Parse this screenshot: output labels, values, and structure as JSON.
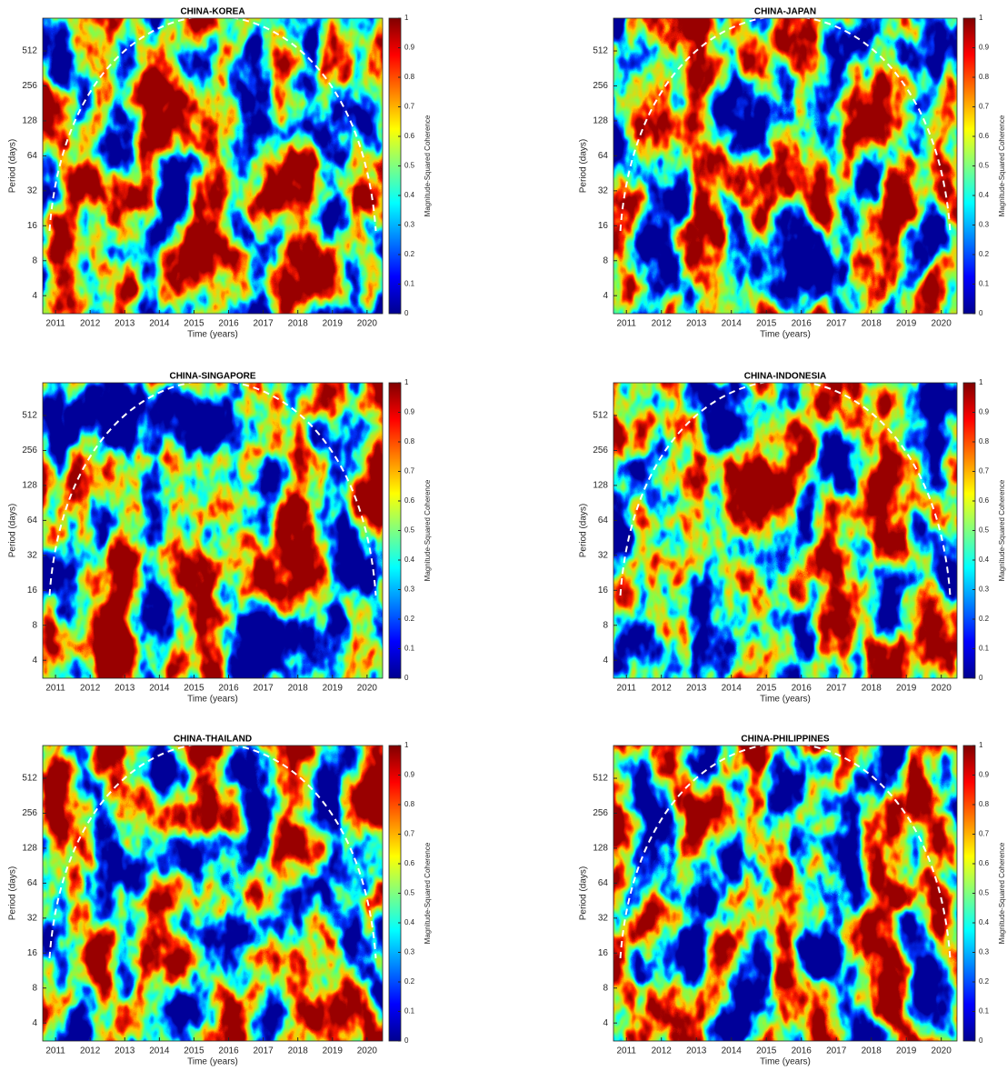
{
  "chart_data": [
    {
      "type": "heatmap",
      "title": "CHINA-KOREA",
      "xlabel": "Time (years)",
      "ylabel": "Period (days)",
      "colorbar_label": "Magnitude-Squared Coherence",
      "colormap": "jet",
      "log_scale_y": true,
      "xlim": [
        2010.63,
        2020.45
      ],
      "xticks": [
        2011,
        2012,
        2013,
        2014,
        2015,
        2016,
        2017,
        2018,
        2019,
        2020
      ],
      "ylim": [
        2.8,
        980
      ],
      "yticks": [
        4,
        8,
        16,
        32,
        64,
        128,
        256,
        512
      ],
      "clim": [
        0,
        1
      ],
      "cticks": [
        0,
        0.1,
        0.2,
        0.3,
        0.4,
        0.5,
        0.6,
        0.7,
        0.8,
        0.9,
        1
      ]
    },
    {
      "type": "heatmap",
      "title": "CHINA-JAPAN",
      "xlabel": "Time (years)",
      "ylabel": "Period (days)",
      "colorbar_label": "Magnitude-Squared Coherence",
      "colormap": "jet",
      "log_scale_y": true,
      "xlim": [
        2010.63,
        2020.45
      ],
      "xticks": [
        2011,
        2012,
        2013,
        2014,
        2015,
        2016,
        2017,
        2018,
        2019,
        2020
      ],
      "ylim": [
        2.8,
        980
      ],
      "yticks": [
        4,
        8,
        16,
        32,
        64,
        128,
        256,
        512
      ],
      "clim": [
        0,
        1
      ],
      "cticks": [
        0,
        0.1,
        0.2,
        0.3,
        0.4,
        0.5,
        0.6,
        0.7,
        0.8,
        0.9,
        1
      ]
    },
    {
      "type": "heatmap",
      "title": "CHINA-SINGAPORE",
      "xlabel": "Time (years)",
      "ylabel": "Period (days)",
      "colorbar_label": "Magnitude-Squared Coherence",
      "colormap": "jet",
      "log_scale_y": true,
      "xlim": [
        2010.63,
        2020.45
      ],
      "xticks": [
        2011,
        2012,
        2013,
        2014,
        2015,
        2016,
        2017,
        2018,
        2019,
        2020
      ],
      "ylim": [
        2.8,
        980
      ],
      "yticks": [
        4,
        8,
        16,
        32,
        64,
        128,
        256,
        512
      ],
      "clim": [
        0,
        1
      ],
      "cticks": [
        0,
        0.1,
        0.2,
        0.3,
        0.4,
        0.5,
        0.6,
        0.7,
        0.8,
        0.9,
        1
      ]
    },
    {
      "type": "heatmap",
      "title": "CHINA-INDONESIA",
      "xlabel": "Time (years)",
      "ylabel": "Period (days)",
      "colorbar_label": "Magnitude-Squared Coherence",
      "colormap": "jet",
      "log_scale_y": true,
      "xlim": [
        2010.63,
        2020.45
      ],
      "xticks": [
        2011,
        2012,
        2013,
        2014,
        2015,
        2016,
        2017,
        2018,
        2019,
        2020
      ],
      "ylim": [
        2.8,
        980
      ],
      "yticks": [
        4,
        8,
        16,
        32,
        64,
        128,
        256,
        512
      ],
      "clim": [
        0,
        1
      ],
      "cticks": [
        0,
        0.1,
        0.2,
        0.3,
        0.4,
        0.5,
        0.6,
        0.7,
        0.8,
        0.9,
        1
      ]
    },
    {
      "type": "heatmap",
      "title": "CHINA-THAILAND",
      "xlabel": "Time (years)",
      "ylabel": "Period (days)",
      "colorbar_label": "Magnitude-Squared Coherence",
      "colormap": "jet",
      "log_scale_y": true,
      "xlim": [
        2010.63,
        2020.45
      ],
      "xticks": [
        2011,
        2012,
        2013,
        2014,
        2015,
        2016,
        2017,
        2018,
        2019,
        2020
      ],
      "ylim": [
        2.8,
        980
      ],
      "yticks": [
        4,
        8,
        16,
        32,
        64,
        128,
        256,
        512
      ],
      "clim": [
        0,
        1
      ],
      "cticks": [
        0,
        0.1,
        0.2,
        0.3,
        0.4,
        0.5,
        0.6,
        0.7,
        0.8,
        0.9,
        1
      ]
    },
    {
      "type": "heatmap",
      "title": "CHINA-PHILIPPINES",
      "xlabel": "Time (years)",
      "ylabel": "Period (days)",
      "colorbar_label": "Magnitude-Squared Coherence",
      "colormap": "jet",
      "log_scale_y": true,
      "xlim": [
        2010.63,
        2020.45
      ],
      "xticks": [
        2011,
        2012,
        2013,
        2014,
        2015,
        2016,
        2017,
        2018,
        2019,
        2020
      ],
      "ylim": [
        2.8,
        980
      ],
      "yticks": [
        4,
        8,
        16,
        32,
        64,
        128,
        256,
        512
      ],
      "clim": [
        0,
        1
      ],
      "cticks": [
        0,
        0.1,
        0.2,
        0.3,
        0.4,
        0.5,
        0.6,
        0.7,
        0.8,
        0.9,
        1
      ]
    }
  ]
}
